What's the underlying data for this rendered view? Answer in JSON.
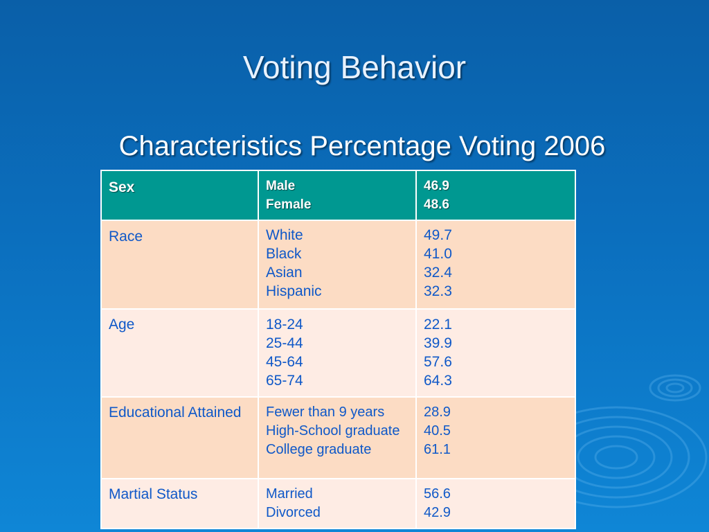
{
  "slide": {
    "title": "Voting Behavior",
    "subtitle": "Characteristics Percentage Voting 2006"
  },
  "table": {
    "rows": [
      {
        "category": "Sex",
        "items": [
          "Male",
          "Female"
        ],
        "values": [
          "46.9",
          "48.6"
        ]
      },
      {
        "category": "Race",
        "items": [
          "White",
          "Black",
          "Asian",
          "Hispanic"
        ],
        "values": [
          "49.7",
          "41.0",
          "32.4",
          "32.3"
        ]
      },
      {
        "category": "Age",
        "items": [
          "18-24",
          "25-44",
          "45-64",
          "65-74"
        ],
        "values": [
          "22.1",
          "39.9",
          "57.6",
          "64.3"
        ]
      },
      {
        "category": "Educational Attained",
        "items": [
          "Fewer than 9 years",
          "High-School graduate",
          "College graduate"
        ],
        "values": [
          "28.9",
          "40.5",
          "61.1"
        ]
      },
      {
        "category": "Martial Status",
        "items": [
          "Married",
          "Divorced"
        ],
        "values": [
          "56.6",
          "42.9"
        ]
      }
    ]
  },
  "colors": {
    "background": "#0b6fbe",
    "header_fill": "#009891",
    "row_fill_dark": "#fcdcc4",
    "row_fill_light": "#feece4",
    "cell_text": "#0f58c8"
  }
}
